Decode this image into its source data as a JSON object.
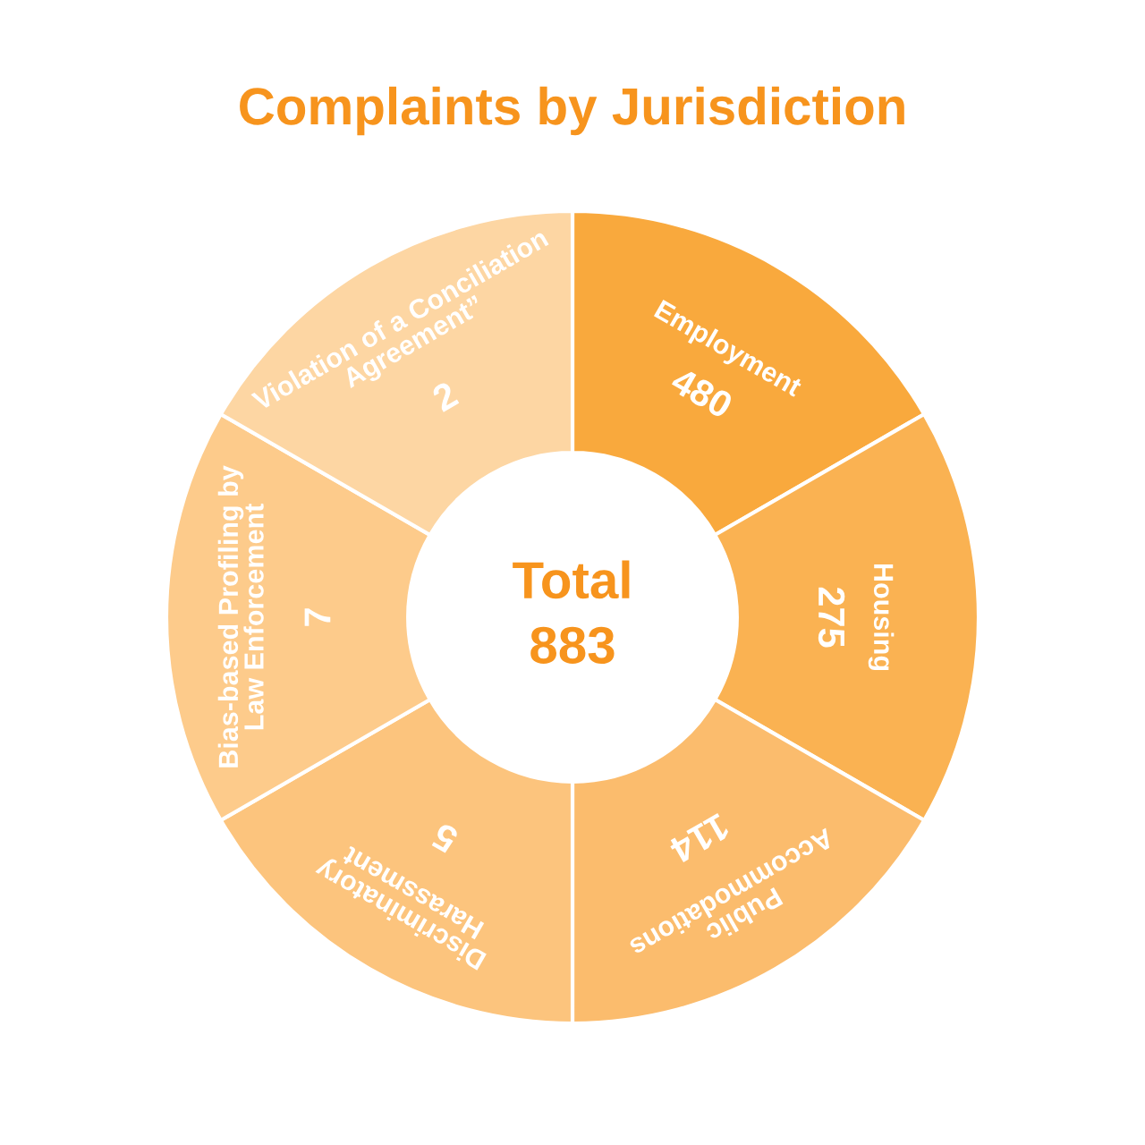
{
  "chart_data": {
    "type": "other",
    "title": "Complaints by Jurisdiction",
    "categories": [
      "Employment",
      "Housing",
      "Public\nAccommodations",
      "Discriminatory\nHarassment",
      "Bias-based Profiling by\nLaw Enforcement",
      "Violation of a Conciliation\nAgreement”"
    ],
    "values": [
      480,
      275,
      114,
      5,
      7,
      2
    ],
    "data_labels": true,
    "colors": [
      "#f9a93d",
      "#fab252",
      "#fbbc6d",
      "#fcc47d",
      "#fdcb8b",
      "#fdd6a3"
    ],
    "annotations": [
      "Total",
      "883"
    ]
  }
}
